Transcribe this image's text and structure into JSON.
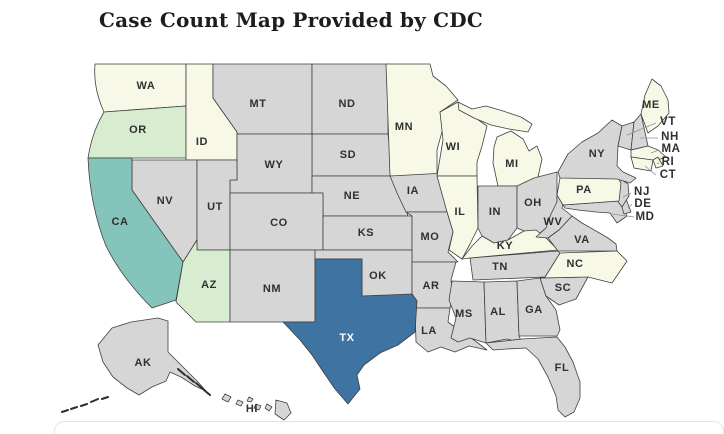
{
  "title": "Case Count Map Provided by CDC",
  "map": {
    "tier_fills": {
      "none": "#d6d6d6",
      "low": "#f7f8e6",
      "medium": "#d8ecd0",
      "high": "#84c4ba",
      "highest": "#3e73a2"
    },
    "border_color": "#404040",
    "label_color": "#303030",
    "label_on_dark": "#ffffff",
    "leader_line_color": "#8f8f8f",
    "states": [
      {
        "abbr": "WA",
        "tier": "low"
      },
      {
        "abbr": "OR",
        "tier": "medium"
      },
      {
        "abbr": "ID",
        "tier": "low"
      },
      {
        "abbr": "MT",
        "tier": "none"
      },
      {
        "abbr": "ND",
        "tier": "none"
      },
      {
        "abbr": "SD",
        "tier": "none"
      },
      {
        "abbr": "WY",
        "tier": "none"
      },
      {
        "abbr": "NE",
        "tier": "none"
      },
      {
        "abbr": "MN",
        "tier": "low"
      },
      {
        "abbr": "IA",
        "tier": "none"
      },
      {
        "abbr": "WI",
        "tier": "low"
      },
      {
        "abbr": "MI",
        "tier": "low"
      },
      {
        "abbr": "IL",
        "tier": "low"
      },
      {
        "abbr": "IN",
        "tier": "none"
      },
      {
        "abbr": "OH",
        "tier": "none"
      },
      {
        "abbr": "NV",
        "tier": "none"
      },
      {
        "abbr": "UT",
        "tier": "none"
      },
      {
        "abbr": "CO",
        "tier": "none"
      },
      {
        "abbr": "KS",
        "tier": "none"
      },
      {
        "abbr": "MO",
        "tier": "none"
      },
      {
        "abbr": "CA",
        "tier": "high"
      },
      {
        "abbr": "AZ",
        "tier": "medium"
      },
      {
        "abbr": "NM",
        "tier": "none"
      },
      {
        "abbr": "OK",
        "tier": "none"
      },
      {
        "abbr": "AR",
        "tier": "none"
      },
      {
        "abbr": "LA",
        "tier": "none"
      },
      {
        "abbr": "MS",
        "tier": "none"
      },
      {
        "abbr": "AL",
        "tier": "none"
      },
      {
        "abbr": "GA",
        "tier": "none"
      },
      {
        "abbr": "SC",
        "tier": "none"
      },
      {
        "abbr": "NC",
        "tier": "low"
      },
      {
        "abbr": "TN",
        "tier": "none"
      },
      {
        "abbr": "KY",
        "tier": "low"
      },
      {
        "abbr": "WV",
        "tier": "none"
      },
      {
        "abbr": "VA",
        "tier": "none"
      },
      {
        "abbr": "MD",
        "tier": "none"
      },
      {
        "abbr": "DE",
        "tier": "none"
      },
      {
        "abbr": "NJ",
        "tier": "none"
      },
      {
        "abbr": "PA",
        "tier": "low"
      },
      {
        "abbr": "NY",
        "tier": "none"
      },
      {
        "abbr": "VT",
        "tier": "none"
      },
      {
        "abbr": "NH",
        "tier": "none"
      },
      {
        "abbr": "MA",
        "tier": "low"
      },
      {
        "abbr": "RI",
        "tier": "low"
      },
      {
        "abbr": "CT",
        "tier": "low"
      },
      {
        "abbr": "ME",
        "tier": "low"
      },
      {
        "abbr": "TX",
        "tier": "highest"
      },
      {
        "abbr": "FL",
        "tier": "none"
      },
      {
        "abbr": "AK",
        "tier": "none"
      },
      {
        "abbr": "HI",
        "tier": "none"
      }
    ]
  }
}
